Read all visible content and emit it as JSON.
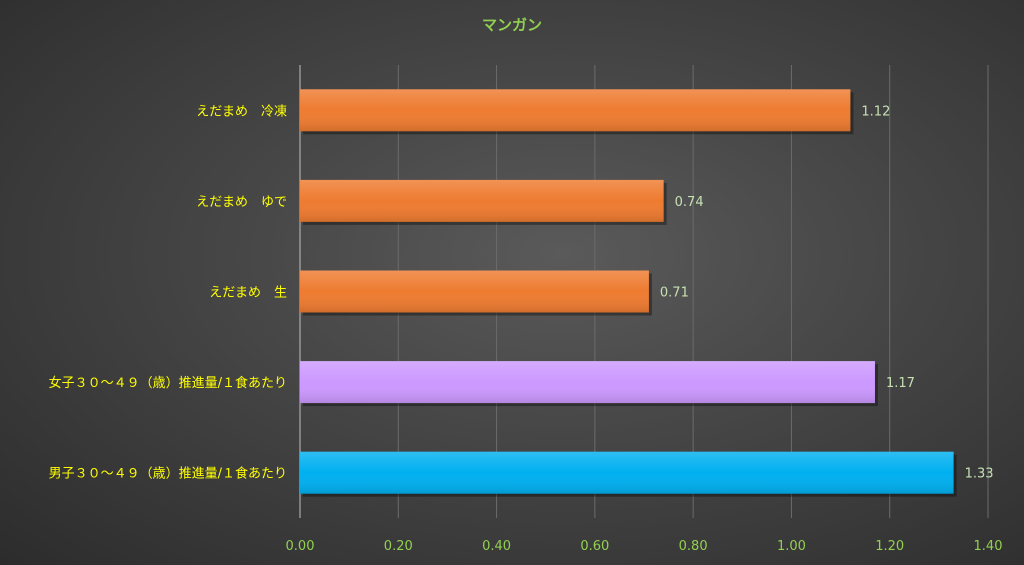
{
  "chart_data": {
    "type": "bar",
    "orientation": "horizontal",
    "title": "マンガン",
    "categories": [
      "えだまめ　冷凍",
      "えだまめ　ゆで",
      "えだまめ　生",
      "女子３０～４９（歳）推進量/１食あたり",
      "男子３０～４９（歳）推進量/１食あたり"
    ],
    "values": [
      1.12,
      0.74,
      0.71,
      1.17,
      1.33
    ],
    "value_labels": [
      "1.12",
      "0.74",
      "0.71",
      "1.17",
      "1.33"
    ],
    "bar_colors": [
      "#ee7b30",
      "#ee7b30",
      "#ee7b30",
      "#cc99ff",
      "#00b0f0"
    ],
    "xlim": [
      0,
      1.4
    ],
    "xticks": [
      "0.00",
      "0.20",
      "0.40",
      "0.60",
      "0.80",
      "1.00",
      "1.20",
      "1.40"
    ],
    "grid": true,
    "legend": "none"
  }
}
